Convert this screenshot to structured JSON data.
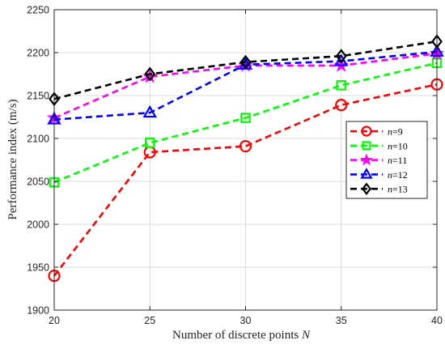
{
  "chart_data": {
    "type": "line",
    "x": [
      20,
      25,
      30,
      35,
      40
    ],
    "xlim": [
      20,
      40
    ],
    "ylim": [
      1900,
      2250
    ],
    "xticks": [
      20,
      25,
      30,
      35,
      40
    ],
    "yticks": [
      1900,
      1950,
      2000,
      2050,
      2100,
      2150,
      2200,
      2250
    ],
    "xlabel_text": "Number of discrete points ",
    "xlabel_var": "N",
    "ylabel": "Performance index (m/s)",
    "grid": true,
    "legend_position": "right-middle",
    "series": [
      {
        "name": "n=9",
        "label_var": "n",
        "label_value": "=9",
        "color": "#ff0000",
        "marker": "circle",
        "values": [
          1940,
          2084,
          2091,
          2139,
          2163
        ]
      },
      {
        "name": "n=10",
        "label_var": "n",
        "label_value": "=10",
        "color": "#00ff00",
        "marker": "square",
        "values": [
          2049,
          2095,
          2124,
          2162,
          2188
        ]
      },
      {
        "name": "n=11",
        "label_var": "n",
        "label_value": "=11",
        "color": "#ff00ff",
        "marker": "star",
        "values": [
          2124,
          2172,
          2185,
          2185,
          2199
        ]
      },
      {
        "name": "n=12",
        "label_var": "n",
        "label_value": "=12",
        "color": "#0000ff",
        "marker": "triangle",
        "values": [
          2122,
          2130,
          2186,
          2190,
          2201
        ]
      },
      {
        "name": "n=13",
        "label_var": "n",
        "label_value": "=13",
        "color": "#000000",
        "marker": "diamond",
        "values": [
          2146,
          2175,
          2189,
          2196,
          2213
        ]
      }
    ]
  }
}
